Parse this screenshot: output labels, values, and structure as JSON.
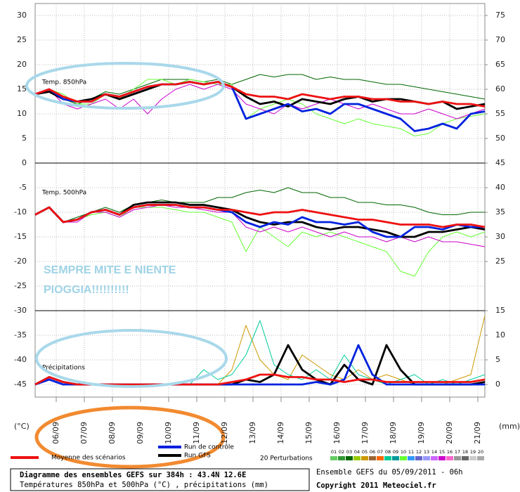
{
  "chart_data": {
    "type": "line",
    "title": "Diagramme des ensembles GEFS sur 384h : 43.4N 12.6E",
    "subtitle": "Températures 850hPa et 500hPa (°C) , précipitations (mm)",
    "run_label": "Ensemble GEFS du 05/09/2011 - 06h",
    "copyright": "Copyright 2011 Meteociel.fr",
    "y_label": "(°C)",
    "y2_label": "(mm)",
    "panel_labels": [
      "Temp. 850hPa",
      "Temp. 500hPa",
      "Précipitations"
    ],
    "annotation": [
      "SEMPRE MITE E NIENTE",
      "PIOGGIA!!!!!!!!!!"
    ],
    "grid": true,
    "x": [
      0,
      12,
      24,
      36,
      48,
      60,
      72,
      84,
      96,
      108,
      120,
      132,
      144,
      156,
      168,
      180,
      192,
      204,
      216,
      228,
      240,
      252,
      264,
      276,
      288,
      300,
      312,
      324,
      336,
      348,
      360,
      372,
      384
    ],
    "xlim": [
      0,
      384
    ],
    "xticks": [
      {
        "value": 18,
        "label": "06/09"
      },
      {
        "value": 42,
        "label": "07/09"
      },
      {
        "value": 66,
        "label": "08/09"
      },
      {
        "value": 90,
        "label": "09/09"
      },
      {
        "value": 114,
        "label": "10/09"
      },
      {
        "value": 138,
        "label": "11/09"
      },
      {
        "value": 162,
        "label": "12/09"
      },
      {
        "value": 186,
        "label": "13/09"
      },
      {
        "value": 210,
        "label": "14/09"
      },
      {
        "value": 234,
        "label": "15/09"
      },
      {
        "value": 258,
        "label": "16/09"
      },
      {
        "value": 282,
        "label": "17/09"
      },
      {
        "value": 306,
        "label": "18/09"
      },
      {
        "value": 330,
        "label": "19/09"
      },
      {
        "value": 354,
        "label": "20/09"
      },
      {
        "value": 378,
        "label": "21/09"
      }
    ],
    "ylim": [
      -45,
      30
    ],
    "yticks": [
      30,
      25,
      20,
      15,
      10,
      5,
      0,
      -5,
      -10,
      -15,
      -20,
      -25,
      -30,
      -35,
      -40,
      -45
    ],
    "y2lim": [
      0,
      75
    ],
    "y2ticks": [
      75,
      70,
      65,
      60,
      55,
      50,
      45,
      40,
      35,
      30,
      25,
      15,
      10,
      5,
      0
    ],
    "perturbation_legend": {
      "title": "20 Perturbations",
      "members": [
        {
          "name": "01",
          "color": "#66cc66"
        },
        {
          "name": "02",
          "color": "#339933"
        },
        {
          "name": "03",
          "color": "#006600"
        },
        {
          "name": "04",
          "color": "#99cc00"
        },
        {
          "name": "05",
          "color": "#cc9900"
        },
        {
          "name": "06",
          "color": "#996633"
        },
        {
          "name": "07",
          "color": "#ff6600"
        },
        {
          "name": "08",
          "color": "#00cc99"
        },
        {
          "name": "09",
          "color": "#009999"
        },
        {
          "name": "10",
          "color": "#66ff33"
        },
        {
          "name": "11",
          "color": "#3399ff"
        },
        {
          "name": "12",
          "color": "#6666cc"
        },
        {
          "name": "13",
          "color": "#9999ff"
        },
        {
          "name": "14",
          "color": "#cc66ff"
        },
        {
          "name": "15",
          "color": "#cc00cc"
        },
        {
          "name": "16",
          "color": "#ff66cc"
        },
        {
          "name": "17",
          "color": "#999999"
        },
        {
          "name": "18",
          "color": "#666666"
        },
        {
          "name": "19",
          "color": "#cccccc"
        },
        {
          "name": "20",
          "color": "#aaaaaa"
        }
      ]
    },
    "series": [
      {
        "name": "03",
        "color": "#006600",
        "values": [
          14,
          15,
          13,
          12,
          13,
          14.5,
          14,
          15,
          16,
          17,
          17,
          17,
          16.5,
          17,
          16,
          17,
          18,
          17.5,
          18,
          18,
          17,
          17.5,
          17,
          17,
          16.5,
          16,
          16,
          15.5,
          15,
          14.5,
          14,
          13.5,
          13
        ]
      },
      {
        "name": "10",
        "color": "#66ff33",
        "values": [
          14,
          15,
          14,
          12,
          12,
          14,
          13,
          15,
          17,
          17,
          16,
          17,
          16.5,
          16,
          16,
          9,
          11,
          12,
          13,
          12,
          10,
          9,
          8,
          9,
          8,
          7.5,
          7,
          5.5,
          6,
          8,
          9,
          9.5,
          10
        ]
      },
      {
        "name": "15",
        "color": "#cc00cc",
        "values": [
          14,
          15,
          12,
          11,
          12,
          13,
          11,
          13,
          10,
          13,
          15,
          16,
          15,
          16,
          15,
          12,
          11,
          10,
          12,
          11,
          12,
          13,
          12,
          11,
          12,
          11,
          10,
          10,
          11,
          10,
          9,
          10,
          11
        ]
      },
      {
        "name": "Run GFS",
        "color": "#000000",
        "values": [
          14,
          14.5,
          13,
          12.5,
          13,
          14,
          13,
          14,
          15,
          16,
          16,
          16.5,
          16,
          16.5,
          15.5,
          13.5,
          12,
          12.5,
          11.5,
          13,
          12.5,
          12,
          13,
          13.5,
          12.5,
          13,
          13,
          12.5,
          12,
          12.5,
          11,
          11.5,
          12
        ]
      },
      {
        "name": "Run de contrôle",
        "color": "#0022dd",
        "values": [
          14,
          15,
          13,
          12.5,
          12.5,
          14,
          13.5,
          14.5,
          15.5,
          16,
          16,
          16.5,
          16,
          16.5,
          15.5,
          9,
          10,
          11,
          12,
          10.5,
          11,
          10,
          12,
          12,
          11,
          10,
          9,
          6.5,
          7,
          8,
          7,
          10,
          10.5
        ]
      },
      {
        "name": "Moyenne des scénarios",
        "color": "#ee1111",
        "values": [
          14,
          15,
          13.5,
          12.5,
          12.5,
          14,
          13.5,
          14.5,
          15.5,
          16,
          16,
          16.5,
          16,
          16.5,
          15.5,
          14,
          13.5,
          13.5,
          13,
          14,
          13.5,
          13,
          13.5,
          13.5,
          13,
          13,
          12.5,
          12.5,
          12,
          12.5,
          12,
          12,
          11.5
        ]
      },
      {
        "name": "03",
        "color": "#006600",
        "values": [
          -10.5,
          -9,
          -12,
          -11,
          -10,
          -9,
          -10,
          -8.5,
          -8,
          -7.5,
          -8,
          -8,
          -8,
          -7,
          -7,
          -6,
          -5.5,
          -6,
          -5,
          -6,
          -6,
          -7,
          -7,
          -8,
          -8,
          -8.5,
          -8.5,
          -9,
          -10,
          -10.5,
          -10.5,
          -10,
          -10
        ]
      },
      {
        "name": "10",
        "color": "#66ff33",
        "values": [
          -10.5,
          -9,
          -12,
          -11.5,
          -10.5,
          -10,
          -11,
          -9,
          -9,
          -9,
          -9.5,
          -10,
          -10,
          -11,
          -12,
          -18,
          -13,
          -15,
          -17,
          -14,
          -15,
          -14,
          -15,
          -16,
          -17,
          -18,
          -22,
          -23,
          -18,
          -15,
          -14,
          -15,
          -14
        ]
      },
      {
        "name": "15",
        "color": "#cc00cc",
        "values": [
          -10.5,
          -9,
          -12,
          -12,
          -10,
          -10,
          -11,
          -9.5,
          -9,
          -8.5,
          -9,
          -9,
          -9.5,
          -10,
          -10,
          -13,
          -14,
          -13,
          -14,
          -13,
          -14,
          -15,
          -14,
          -15,
          -15,
          -16,
          -15,
          -16,
          -15,
          -16,
          -16,
          -16.5,
          -17
        ]
      },
      {
        "name": "Run GFS",
        "color": "#000000",
        "values": [
          -10.5,
          -9,
          -12,
          -11.5,
          -10,
          -9.5,
          -10.5,
          -8.5,
          -8,
          -8,
          -8,
          -8.5,
          -8.5,
          -9,
          -9.5,
          -11,
          -12,
          -12.5,
          -12,
          -12,
          -13,
          -13.5,
          -13,
          -13,
          -13.5,
          -14,
          -15,
          -15,
          -14,
          -14,
          -13.5,
          -13,
          -13.5
        ]
      },
      {
        "name": "Run de contrôle",
        "color": "#0022dd",
        "values": [
          -10.5,
          -9,
          -12,
          -11.5,
          -10,
          -9.5,
          -10.5,
          -9,
          -8.5,
          -8.5,
          -8.5,
          -9,
          -9,
          -9.5,
          -10,
          -12,
          -13,
          -12,
          -12.5,
          -11,
          -12,
          -12,
          -12.5,
          -12,
          -14,
          -15,
          -15,
          -13,
          -13,
          -13.5,
          -12.5,
          -13,
          -13
        ]
      },
      {
        "name": "Moyenne des scénarios",
        "color": "#ee1111",
        "values": [
          -10.5,
          -9,
          -12,
          -11.5,
          -10,
          -9.5,
          -10.5,
          -9,
          -8.5,
          -8.5,
          -8.5,
          -9,
          -9,
          -9.5,
          -9.5,
          -10,
          -10.5,
          -10,
          -10,
          -9.5,
          -10,
          -10.5,
          -11,
          -11.5,
          -11.5,
          -12,
          -12.5,
          -12.5,
          -12.5,
          -13,
          -12.5,
          -12.5,
          -13
        ]
      },
      {
        "name": "05",
        "color": "#cc9900",
        "axis": "y2",
        "values": [
          0,
          1,
          0,
          0,
          0,
          0,
          0,
          0,
          0,
          0,
          0,
          0,
          0,
          0,
          3,
          12,
          5,
          2,
          1,
          6,
          4,
          2,
          1,
          3,
          1,
          2,
          1,
          0,
          0,
          0,
          1,
          2,
          14
        ]
      },
      {
        "name": "08",
        "color": "#00cc99",
        "axis": "y2",
        "values": [
          0,
          1,
          0,
          0,
          0,
          0,
          0,
          0,
          0,
          0,
          0,
          0,
          3,
          1,
          2,
          6,
          13,
          4,
          2,
          1,
          3,
          1,
          6,
          2,
          1,
          0,
          1,
          2,
          0,
          1,
          0,
          1,
          2
        ]
      },
      {
        "name": "Run GFS",
        "color": "#000000",
        "axis": "y2",
        "values": [
          0,
          1.5,
          0.5,
          0,
          0,
          0,
          0,
          0,
          0,
          0,
          0,
          0,
          0,
          0,
          0,
          1,
          0.5,
          2,
          8,
          3,
          1,
          0,
          4,
          1,
          0,
          8,
          3,
          0,
          0,
          0,
          0,
          0,
          0.5
        ]
      },
      {
        "name": "Run de contrôle",
        "color": "#0022dd",
        "axis": "y2",
        "values": [
          0,
          1,
          0,
          0,
          0,
          0,
          0,
          0,
          0,
          0,
          0,
          0,
          0,
          0,
          0,
          0,
          0,
          0,
          0,
          0,
          0.5,
          0,
          1,
          8,
          2,
          0,
          0,
          0,
          0,
          0,
          0,
          0,
          0
        ]
      },
      {
        "name": "Moyenne des scénarios",
        "color": "#ee1111",
        "axis": "y2",
        "values": [
          0,
          1.5,
          0.5,
          0,
          0,
          0,
          0,
          0,
          0,
          0,
          0,
          0,
          0,
          0,
          0.5,
          1,
          2,
          2,
          1.5,
          1.5,
          1,
          1,
          0.5,
          1,
          1,
          0.5,
          0.5,
          0.5,
          0.5,
          0.5,
          0.5,
          0.5,
          1
        ]
      }
    ]
  }
}
